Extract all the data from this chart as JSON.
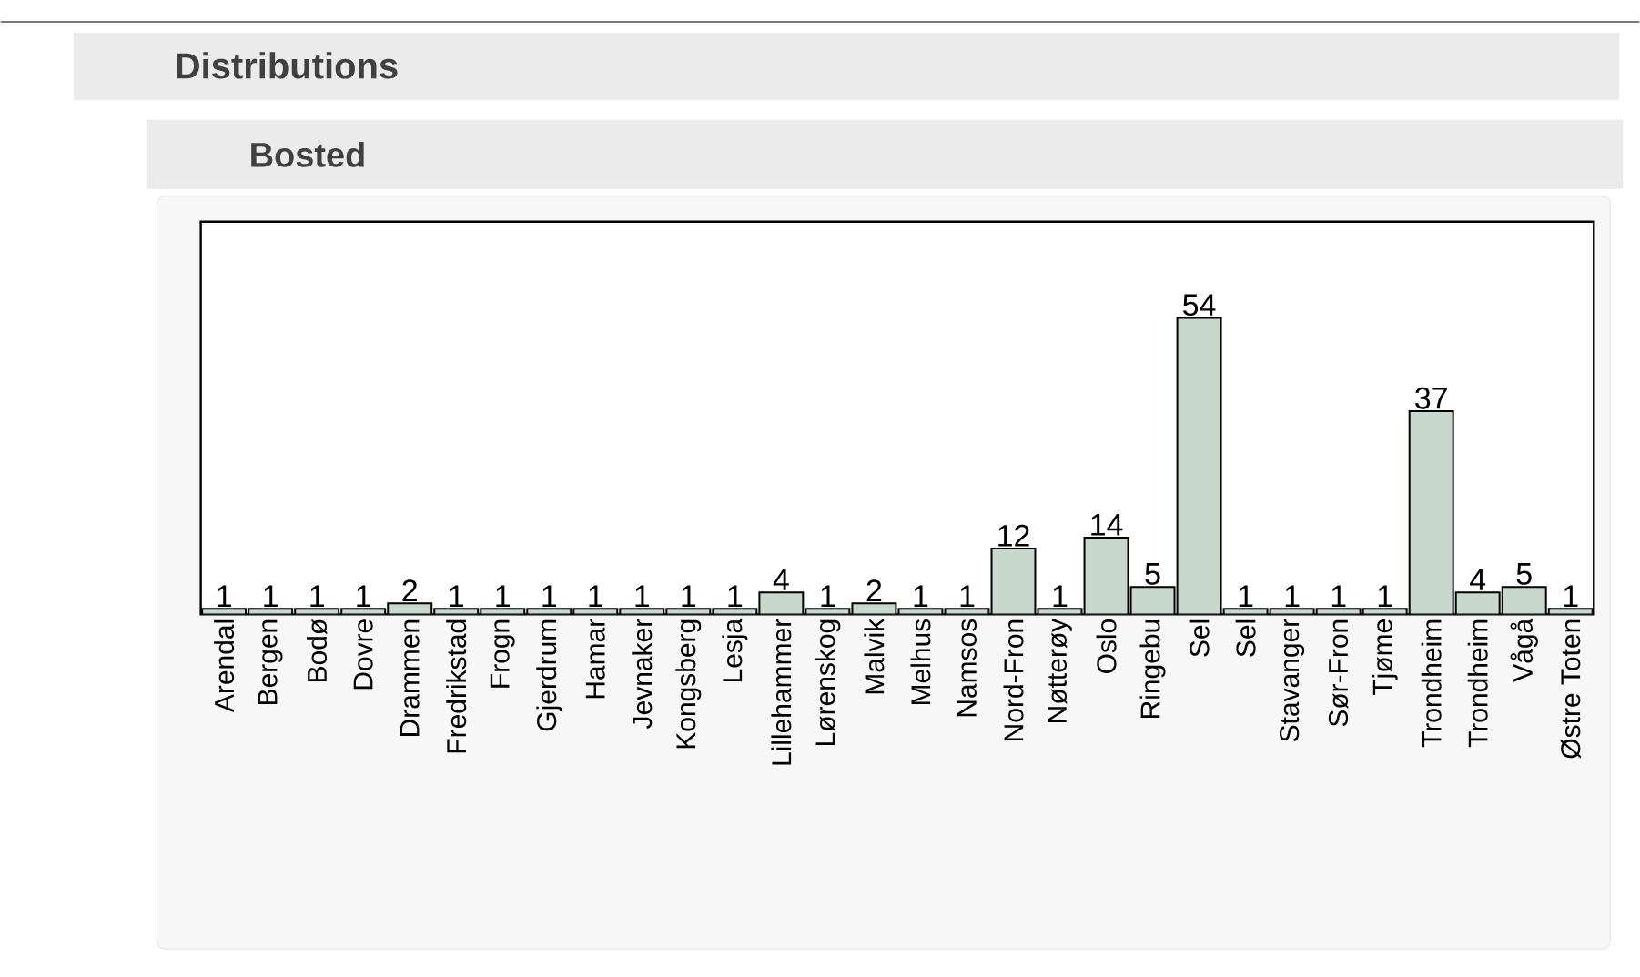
{
  "chart_data": {
    "type": "bar",
    "title": "Distributions",
    "subtitle": "Bosted",
    "categories": [
      "Arendal",
      "Bergen",
      "Bodø",
      "Dovre",
      "Drammen",
      "Fredrikstad",
      "Frogn",
      "Gjerdrum",
      "Hamar",
      "Jevnaker",
      "Kongsberg",
      "Lesja",
      "Lillehammer",
      "Lørenskog",
      "Malvik",
      "Melhus",
      "Namsos",
      "Nord-Fron",
      "Nøtterøy",
      "Oslo",
      "Ringebu",
      "Sel",
      "Sel",
      "Stavanger",
      "Sør-Fron",
      "Tjøme",
      "Trondheim",
      "Trondheim",
      "Vågå",
      "Østre Toten"
    ],
    "values": [
      1,
      1,
      1,
      1,
      2,
      1,
      1,
      1,
      1,
      1,
      1,
      1,
      4,
      1,
      2,
      1,
      1,
      12,
      1,
      14,
      5,
      54,
      1,
      1,
      1,
      1,
      37,
      4,
      5,
      1
    ],
    "color": "#c8d8cc",
    "data_labels": true
  }
}
